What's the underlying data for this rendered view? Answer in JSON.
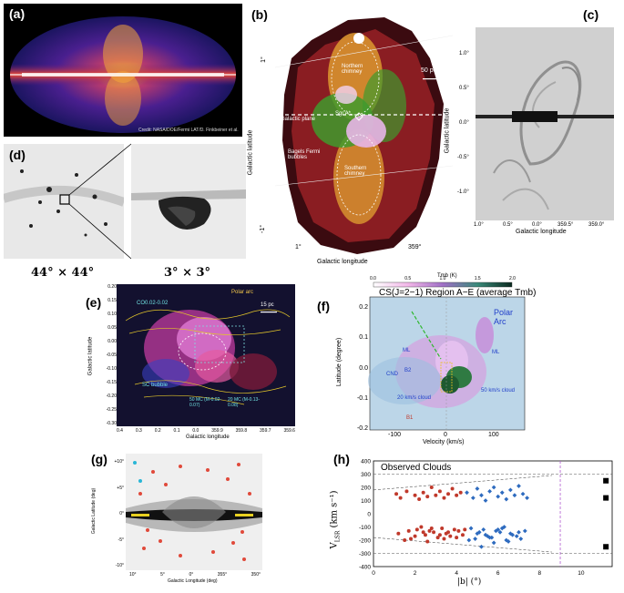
{
  "panels": {
    "a": {
      "label": "(a)",
      "credit": "Credit: NASA/DOE/Fermi LAT/D. Finkbeiner et al."
    },
    "b": {
      "label": "(b)",
      "lat_top": "1°",
      "lat_bottom": "-1°",
      "lat_label": "Galactic latitude",
      "lon_left": "1°",
      "lon_right": "359°",
      "lon_label": "Galactic longitude",
      "scale": "50 pc",
      "northern": "Northern chimney",
      "southern": "Southern chimney",
      "plane": "Galactic plane",
      "sgr": "Sgr A*",
      "bagels": "Bagels Fermi bubbles"
    },
    "c": {
      "label": "(c)",
      "ylabel": "Galactic latitude",
      "xlabel": "Galactic longitude",
      "yticks": [
        "1.0°",
        "0.5°",
        "0.0°",
        "-0.5°",
        "-1.0°"
      ],
      "xticks": [
        "1.0°",
        "0.5°",
        "0.0°",
        "359.5°",
        "359.0°"
      ]
    },
    "d": {
      "label": "(d)",
      "cap_left": "44° × 44°",
      "cap_right": "3° × 3°"
    },
    "e": {
      "label": "(e)",
      "ylabel": "Galactic latitude",
      "xlabel": "Galactic longitude",
      "scale": "15 pc",
      "polar": "Polar arc",
      "cloud1": "CO0.02-0.02",
      "cloud2": "50 MC (M-0.02-0.07)",
      "cloud3": "20 MC (M-0.13-0.08)",
      "sc": "SC bubble",
      "yticks": [
        "0.20",
        "0.15",
        "0.10",
        "0.05",
        "0.00",
        "-0.05",
        "-0.10",
        "-0.15",
        "-0.20",
        "-0.25",
        "-0.30"
      ],
      "xticks": [
        "0.4",
        "0.3",
        "0.2",
        "0.1",
        "0.0",
        "359.9",
        "359.8",
        "359.7",
        "359.6"
      ]
    },
    "f": {
      "label": "(f)",
      "title": "CS(J=2−1) Region A−E (average Tmb)",
      "cbar_label": "Tmb (K)",
      "cbar_ticks": [
        "0.0",
        "0.5",
        "1.0",
        "1.5",
        "2.0"
      ],
      "ylabel": "Latitude (degree)",
      "xlabel": "Velocity (km/s)",
      "yticks": [
        "0.2",
        "0.1",
        "0.0",
        "-0.1",
        "-0.2"
      ],
      "xticks": [
        "-100",
        "0",
        "100"
      ],
      "polar": "Polar Arc",
      "ml1": "ML",
      "ml2": "ML",
      "cnd": "CND",
      "b2": "B2",
      "b1": "B1",
      "c20": "20 km/s cloud",
      "c50": "50 km/s cloud"
    },
    "g": {
      "label": "(g)",
      "ylabel": "Galactic Latitude (deg)",
      "xlabel": "Galactic Longitude (deg)",
      "yticks": [
        "+10°",
        "+5°",
        "0°",
        "-5°",
        "-10°"
      ],
      "xticks": [
        "10°",
        "5°",
        "0°",
        "355°",
        "350°"
      ]
    },
    "h": {
      "label": "(h)",
      "legend": "Observed Clouds",
      "ylabel": "V",
      "ysub": "LSR",
      "yunit": "(km s⁻¹)",
      "xlabel": "|b|  (°)"
    }
  },
  "chart_data": {
    "type": "scatter",
    "title": "Observed Clouds",
    "xlabel": "|b| (°)",
    "ylabel": "V_LSR (km s⁻¹)",
    "xlim": [
      0,
      11.5
    ],
    "ylim": [
      -400,
      400
    ],
    "xticks": [
      0,
      2,
      4,
      6,
      8,
      10
    ],
    "yticks": [
      -400,
      -300,
      -200,
      -100,
      0,
      100,
      200,
      300,
      400
    ],
    "vline": 9.0,
    "hlines": [
      300,
      -300
    ],
    "series": [
      {
        "color": "#c0392b",
        "x": [
          1.1,
          1.3,
          1.6,
          2.0,
          2.2,
          2.4,
          2.6,
          2.8,
          3.0,
          3.2,
          3.4,
          3.6,
          3.8,
          4.0,
          4.2,
          2.1,
          2.5,
          2.9,
          3.3,
          3.7,
          4.1,
          1.2,
          1.8,
          2.3,
          2.7,
          3.1,
          3.5,
          3.9,
          4.3,
          1.5,
          2.0,
          2.4,
          2.8,
          3.2,
          3.6,
          4.0,
          4.4,
          1.7,
          2.6,
          3.4
        ],
        "y": [
          150,
          120,
          170,
          140,
          110,
          160,
          130,
          200,
          140,
          170,
          120,
          150,
          190,
          140,
          160,
          -120,
          -160,
          -140,
          -110,
          -170,
          -130,
          -150,
          -190,
          -100,
          -130,
          -180,
          -150,
          -120,
          -160,
          -200,
          -170,
          -140,
          -110,
          -160,
          -140,
          -180,
          -120,
          -130,
          -210,
          -190
        ]
      },
      {
        "color": "#2e6bbf",
        "x": [
          4.5,
          4.8,
          5.0,
          5.2,
          5.4,
          5.6,
          5.8,
          6.0,
          6.2,
          6.4,
          6.6,
          6.8,
          7.0,
          7.2,
          7.4,
          4.7,
          5.1,
          5.5,
          5.9,
          6.3,
          6.7,
          7.1,
          4.6,
          5.0,
          5.3,
          5.7,
          6.1,
          6.5,
          6.9,
          7.3,
          4.9,
          5.4,
          5.8,
          6.2,
          6.6,
          7.0,
          5.2,
          5.6,
          6.0,
          6.4
        ],
        "y": [
          160,
          120,
          190,
          140,
          100,
          170,
          200,
          130,
          160,
          110,
          180,
          140,
          210,
          150,
          120,
          -110,
          -140,
          -170,
          -130,
          -100,
          -160,
          -190,
          -200,
          -150,
          -120,
          -180,
          -140,
          -210,
          -170,
          -130,
          -190,
          -160,
          -220,
          -110,
          -150,
          -140,
          -250,
          -180,
          -120,
          -200
        ]
      },
      {
        "color": "#000000",
        "x": [
          11.2,
          11.2,
          11.2
        ],
        "y": [
          250,
          120,
          -250
        ]
      }
    ]
  }
}
